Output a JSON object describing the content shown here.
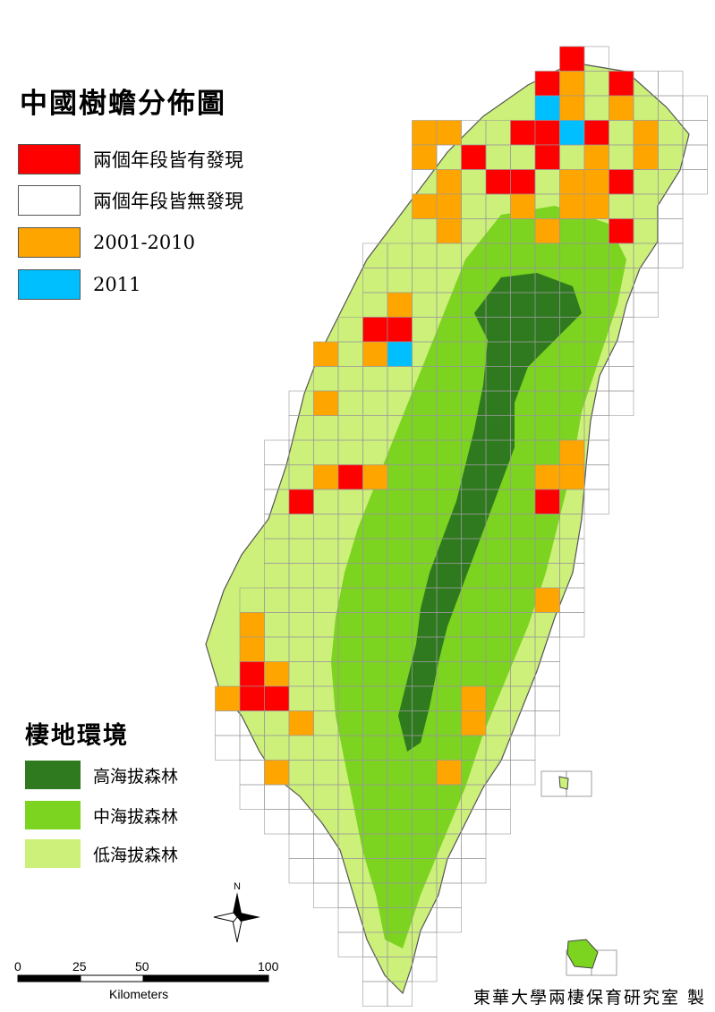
{
  "title": "中國樹蟾分佈圖",
  "distribution_legend": [
    {
      "label": "兩個年段皆有發現",
      "color": "#ff0000"
    },
    {
      "label": "兩個年段皆無發現",
      "color": "#ffffff"
    },
    {
      "label": "2001-2010",
      "color": "#ffa500"
    },
    {
      "label": "2011",
      "color": "#00bfff"
    }
  ],
  "habitat_title": "棲地環境",
  "habitat_legend": [
    {
      "label": "高海拔森林",
      "color": "#2f7a1f"
    },
    {
      "label": "中海拔森林",
      "color": "#7cd320"
    },
    {
      "label": "低海拔森林",
      "color": "#ccf07a"
    }
  ],
  "north_label": "N",
  "scale": {
    "ticks": [
      "0",
      "25",
      "50",
      "100"
    ],
    "unit": "Kilometers"
  },
  "credit": "東華大學兩棲保育研究室 製"
}
